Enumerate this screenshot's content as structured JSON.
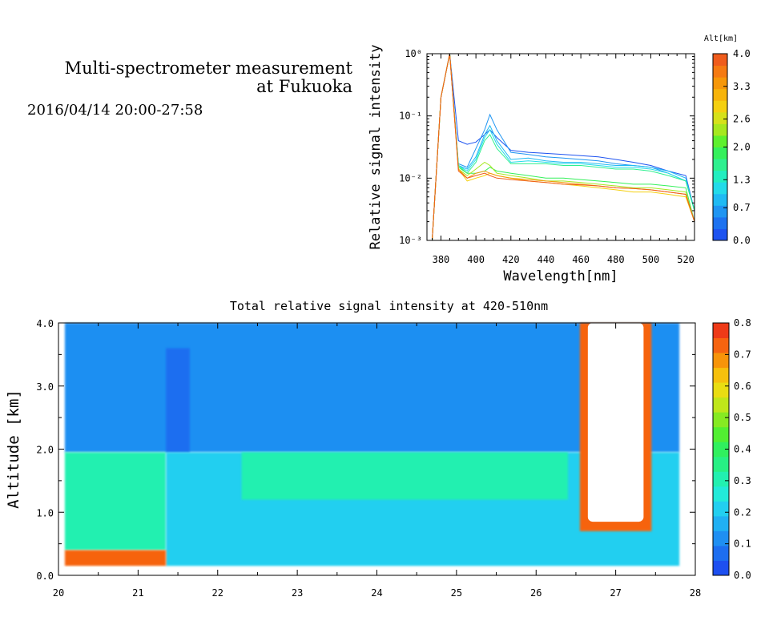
{
  "header": {
    "title_line1": "Multi-spectrometer measurement",
    "title_line2": "at Fukuoka",
    "datetime": "2016/04/14 20:00-27:58"
  },
  "colors": {
    "altitude_scale": [
      "#1d53f0",
      "#1d72f0",
      "#1f95f2",
      "#1fbaf3",
      "#22dbe9",
      "#22eec0",
      "#2ef08f",
      "#35f05b",
      "#5ef02e",
      "#a6e81f",
      "#d6e11a",
      "#f5d010",
      "#f7b40a",
      "#f69709",
      "#f57a12",
      "#ef5c1c"
    ],
    "intensity_scale": [
      "#1d4ff0",
      "#1d6ef0",
      "#1f8ff2",
      "#20b0f3",
      "#22cff0",
      "#22ead9",
      "#22f0b0",
      "#27f084",
      "#30f05e",
      "#52ef32",
      "#86ea22",
      "#bfe61a",
      "#e9dd12",
      "#f6c00c",
      "#f79409",
      "#f66410",
      "#ee3a18"
    ]
  },
  "chart_data": [
    {
      "type": "line",
      "xlabel": "Wavelength[nm]",
      "ylabel": "Relative signal intensity",
      "x": [
        375,
        380,
        385,
        390,
        395,
        400,
        405,
        408,
        412,
        420,
        430,
        440,
        450,
        460,
        470,
        480,
        490,
        500,
        510,
        520,
        525
      ],
      "xlim": [
        372,
        525
      ],
      "ylim_log10": [
        -3,
        0
      ],
      "x_ticks": [
        "380",
        "400",
        "420",
        "440",
        "460",
        "480",
        "500",
        "520"
      ],
      "y_ticks": [
        "10⁰",
        "10⁻¹",
        "10⁻²",
        "10⁻³"
      ],
      "colorbar": {
        "label": "Alt[km]",
        "ticks": [
          "4.0",
          "3.3",
          "2.6",
          "2.0",
          "1.3",
          "0.7",
          "0.0"
        ]
      },
      "series": [
        {
          "alt": 0.1,
          "values": [
            0.001,
            0.2,
            1.0,
            0.04,
            0.035,
            0.038,
            0.05,
            0.06,
            0.045,
            0.028,
            0.026,
            0.025,
            0.024,
            0.023,
            0.022,
            0.02,
            0.018,
            0.016,
            0.013,
            0.011,
            0.003
          ]
        },
        {
          "alt": 0.5,
          "values": [
            0.001,
            0.2,
            1.0,
            0.017,
            0.015,
            0.03,
            0.06,
            0.105,
            0.06,
            0.026,
            0.024,
            0.022,
            0.021,
            0.02,
            0.019,
            0.017,
            0.016,
            0.015,
            0.012,
            0.009,
            0.003
          ]
        },
        {
          "alt": 0.9,
          "values": [
            0.001,
            0.2,
            1.0,
            0.016,
            0.014,
            0.022,
            0.05,
            0.07,
            0.04,
            0.02,
            0.021,
            0.019,
            0.018,
            0.018,
            0.017,
            0.016,
            0.016,
            0.015,
            0.013,
            0.01,
            0.003
          ]
        },
        {
          "alt": 1.2,
          "values": [
            0.001,
            0.2,
            1.0,
            0.016,
            0.013,
            0.02,
            0.045,
            0.06,
            0.035,
            0.018,
            0.019,
            0.018,
            0.017,
            0.017,
            0.016,
            0.015,
            0.015,
            0.014,
            0.012,
            0.009,
            0.003
          ]
        },
        {
          "alt": 1.5,
          "values": [
            0.001,
            0.2,
            1.0,
            0.016,
            0.012,
            0.018,
            0.04,
            0.05,
            0.03,
            0.017,
            0.017,
            0.017,
            0.016,
            0.016,
            0.015,
            0.014,
            0.014,
            0.013,
            0.011,
            0.009,
            0.003
          ]
        },
        {
          "alt": 1.8,
          "values": [
            0.001,
            0.2,
            1.0,
            0.015,
            0.012,
            0.012,
            0.013,
            0.015,
            0.013,
            0.012,
            0.011,
            0.01,
            0.01,
            0.0095,
            0.009,
            0.0085,
            0.008,
            0.008,
            0.0075,
            0.007,
            0.002
          ]
        },
        {
          "alt": 2.3,
          "values": [
            0.001,
            0.2,
            1.0,
            0.014,
            0.011,
            0.014,
            0.018,
            0.016,
            0.012,
            0.011,
            0.01,
            0.009,
            0.009,
            0.0085,
            0.008,
            0.0075,
            0.007,
            0.007,
            0.0065,
            0.006,
            0.002
          ]
        },
        {
          "alt": 2.9,
          "values": [
            0.001,
            0.2,
            1.0,
            0.014,
            0.009,
            0.01,
            0.011,
            0.012,
            0.011,
            0.01,
            0.009,
            0.0085,
            0.008,
            0.0075,
            0.007,
            0.0065,
            0.006,
            0.006,
            0.0055,
            0.005,
            0.002
          ]
        },
        {
          "alt": 3.4,
          "values": [
            0.001,
            0.2,
            1.0,
            0.014,
            0.01,
            0.012,
            0.013,
            0.012,
            0.011,
            0.01,
            0.0095,
            0.009,
            0.0085,
            0.008,
            0.0075,
            0.007,
            0.0068,
            0.0065,
            0.006,
            0.0055,
            0.002
          ]
        },
        {
          "alt": 3.9,
          "values": [
            0.001,
            0.2,
            1.0,
            0.013,
            0.01,
            0.011,
            0.012,
            0.011,
            0.01,
            0.0095,
            0.009,
            0.0085,
            0.008,
            0.0078,
            0.0075,
            0.007,
            0.0068,
            0.0065,
            0.006,
            0.0055,
            0.002
          ]
        }
      ]
    },
    {
      "type": "heatmap",
      "title": "Total relative signal intensity at 420-510nm",
      "ylabel": "Altitude [km]",
      "xlim": [
        20,
        28
      ],
      "ylim": [
        0,
        4
      ],
      "x_ticks": [
        "20",
        "21",
        "22",
        "23",
        "24",
        "25",
        "26",
        "27",
        "28"
      ],
      "y_ticks": [
        "0.0",
        "1.0",
        "2.0",
        "3.0",
        "4.0"
      ],
      "colorbar": {
        "range": [
          0,
          0.8
        ],
        "ticks": [
          "0.8",
          "0.7",
          "0.6",
          "0.5",
          "0.4",
          "0.3",
          "0.2",
          "0.1",
          "0.0"
        ]
      },
      "data_extent": {
        "x": [
          20.08,
          27.8
        ],
        "y": [
          0.15,
          4.0
        ]
      },
      "layers": [
        {
          "x": [
            20.08,
            27.8
          ],
          "y": [
            1.95,
            4.0
          ],
          "value": 0.13
        },
        {
          "x": [
            21.35,
            21.65
          ],
          "y": [
            1.95,
            3.6
          ],
          "value": 0.08
        },
        {
          "x": [
            20.08,
            21.35
          ],
          "y": [
            0.4,
            1.95
          ],
          "value": 0.3
        },
        {
          "x": [
            21.35,
            27.8
          ],
          "y": [
            0.15,
            1.95
          ],
          "value": 0.22
        },
        {
          "x": [
            22.3,
            26.4
          ],
          "y": [
            1.2,
            1.95
          ],
          "value": 0.3
        },
        {
          "x": [
            20.08,
            21.35
          ],
          "y": [
            0.15,
            0.4
          ],
          "value": 0.72
        },
        {
          "x": [
            26.55,
            27.45
          ],
          "y": [
            0.7,
            4.0
          ],
          "value": 0.75
        }
      ],
      "blank_region": {
        "x": [
          26.65,
          27.35
        ],
        "y": [
          0.85,
          4.0
        ]
      }
    }
  ]
}
